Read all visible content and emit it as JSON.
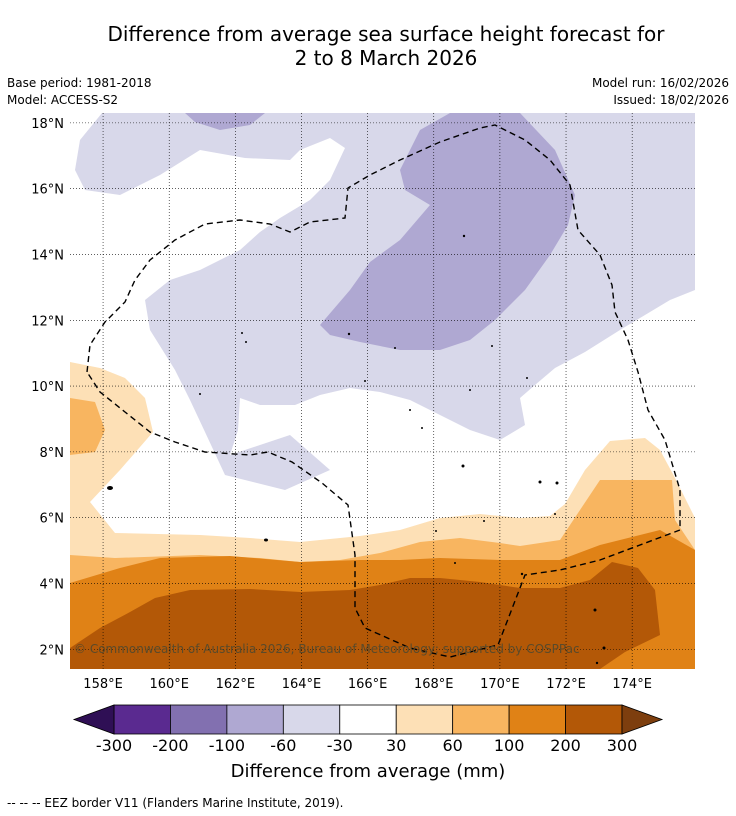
{
  "title_line1": "Difference from average sea surface height forecast for",
  "title_line2": "2 to 8 March 2026",
  "base_period": "Base period: 1981-2018",
  "model": "Model: ACCESS-S2",
  "model_run": "Model run: 16/02/2026",
  "issued": "Issued: 18/02/2026",
  "copyright": "© Commonwealth of Australia 2026, Bureau of Meteorology; supported by COSPPac",
  "footer_note": "--  --  -- EEZ border V11 (Flanders Marine Institute, 2019).",
  "chart_data": {
    "type": "heatmap",
    "title": "Difference from average sea surface height forecast for 2 to 8 March 2026",
    "lon_range": [
      157.0,
      175.9
    ],
    "lat_range": [
      1.4,
      18.3
    ],
    "x_ticks": [
      158,
      160,
      162,
      164,
      166,
      168,
      170,
      172,
      174
    ],
    "x_tick_labels": [
      "158°E",
      "160°E",
      "162°E",
      "164°E",
      "166°E",
      "168°E",
      "170°E",
      "172°E",
      "174°E"
    ],
    "y_ticks": [
      2,
      4,
      6,
      8,
      10,
      12,
      14,
      16,
      18
    ],
    "y_tick_labels": [
      "2°N",
      "4°N",
      "6°N",
      "8°N",
      "10°N",
      "12°N",
      "14°N",
      "16°N",
      "18°N"
    ],
    "grid": true,
    "colorbar": {
      "label": "Difference from average (mm)",
      "boundaries": [
        -300,
        -200,
        -100,
        -60,
        -30,
        30,
        60,
        100,
        200,
        300
      ],
      "tick_labels": [
        "-300",
        "-200",
        "-100",
        "-60",
        "-30",
        "30",
        "60",
        "100",
        "200",
        "300"
      ],
      "colors": [
        "#5a2a90",
        "#8270b0",
        "#afa8d2",
        "#d8d8ea",
        "#ffffff",
        "#fde0b6",
        "#f8b560",
        "#e08216",
        "#b35807"
      ],
      "under_color": "#2f0f55",
      "over_color": "#7d3e0e",
      "extend": "both"
    },
    "overlay": "EEZ border (dashed line)"
  }
}
